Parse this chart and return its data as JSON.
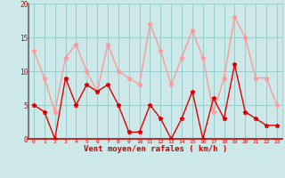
{
  "x": [
    0,
    1,
    2,
    3,
    4,
    5,
    6,
    7,
    8,
    9,
    10,
    11,
    12,
    13,
    14,
    15,
    16,
    17,
    18,
    19,
    20,
    21,
    22,
    23
  ],
  "wind_avg": [
    5,
    4,
    0,
    9,
    5,
    8,
    7,
    8,
    5,
    1,
    1,
    5,
    3,
    0,
    3,
    7,
    0,
    6,
    3,
    11,
    4,
    3,
    2,
    2
  ],
  "wind_gust": [
    13,
    9,
    4,
    12,
    14,
    10,
    7,
    14,
    10,
    9,
    8,
    17,
    13,
    8,
    12,
    16,
    12,
    4,
    9,
    18,
    15,
    9,
    9,
    5
  ],
  "xlabel": "Vent moyen/en rafales ( km/h )",
  "ylim": [
    0,
    20
  ],
  "yticks": [
    0,
    5,
    10,
    15,
    20
  ],
  "xticks": [
    0,
    1,
    2,
    3,
    4,
    5,
    6,
    7,
    8,
    9,
    10,
    11,
    12,
    13,
    14,
    15,
    16,
    17,
    18,
    19,
    20,
    21,
    22,
    23
  ],
  "bg_color": "#cce8e8",
  "grid_color": "#99cccc",
  "avg_color": "#dd0000",
  "gust_color": "#ff9999",
  "xlabel_color": "#cc0000",
  "tick_color": "#cc0000",
  "left_spine_color": "#666666",
  "bottom_spine_color": "#cc0000"
}
